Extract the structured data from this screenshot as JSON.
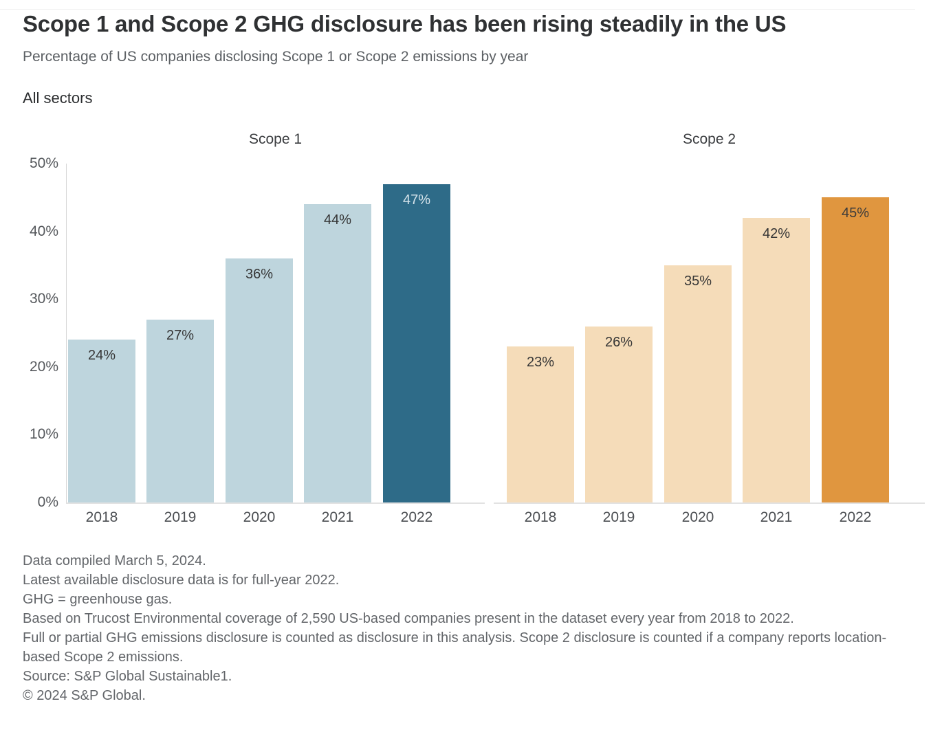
{
  "header": {
    "title": "Scope 1 and Scope 2 GHG disclosure has been rising steadily in the US",
    "subtitle": "Percentage of US companies disclosing Scope 1 or Scope 2 emissions by year",
    "filter_label": "All sectors"
  },
  "chart_data": [
    {
      "type": "bar",
      "title": "Scope 1",
      "categories": [
        "2018",
        "2019",
        "2020",
        "2021",
        "2022"
      ],
      "values": [
        24,
        27,
        36,
        44,
        47
      ],
      "value_labels": [
        "24%",
        "27%",
        "36%",
        "44%",
        "47%"
      ],
      "highlight_index": 4,
      "ylim": [
        0,
        50
      ],
      "yticks": [
        "50%",
        "40%",
        "30%",
        "20%",
        "10%",
        "0%"
      ],
      "xlabel": "",
      "ylabel": "",
      "grid": false,
      "legend": "none",
      "bar_color": "#bed5dd",
      "highlight_color": "#2e6b88",
      "value_label_color": "#363636",
      "highlight_label_color": "#d5e3ea"
    },
    {
      "type": "bar",
      "title": "Scope 2",
      "categories": [
        "2018",
        "2019",
        "2020",
        "2021",
        "2022"
      ],
      "values": [
        23,
        26,
        35,
        42,
        45
      ],
      "value_labels": [
        "23%",
        "26%",
        "35%",
        "42%",
        "45%"
      ],
      "highlight_index": 4,
      "ylim": [
        0,
        50
      ],
      "yticks": [],
      "xlabel": "",
      "ylabel": "",
      "grid": false,
      "legend": "none",
      "bar_color": "#f5dcb9",
      "highlight_color": "#e0963f",
      "value_label_color": "#363636",
      "highlight_label_color": "#3b3b3b"
    }
  ],
  "footnotes": [
    "Data compiled March 5, 2024.",
    "Latest available disclosure data is for full-year 2022.",
    "GHG = greenhouse gas.",
    "Based on Trucost Environmental coverage of 2,590 US-based companies present in the dataset every year from 2018 to 2022.",
    "Full or partial GHG emissions disclosure is counted as disclosure in this analysis. Scope 2 disclosure is counted if a company reports location-based Scope 2 emissions.",
    "Source: S&P Global Sustainable1.",
    "© 2024 S&P Global."
  ]
}
